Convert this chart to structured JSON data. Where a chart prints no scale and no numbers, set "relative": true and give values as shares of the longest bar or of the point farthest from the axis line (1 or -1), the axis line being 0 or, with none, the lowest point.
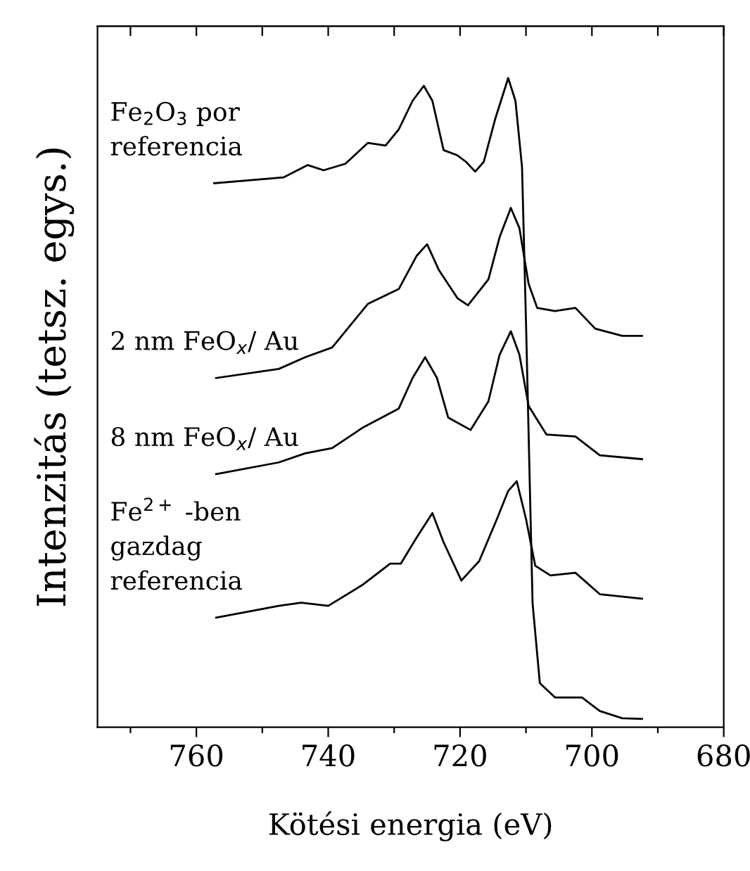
{
  "chart_data": {
    "type": "line",
    "relative": true,
    "xlabel": "Kötési energia (eV)",
    "ylabel": "Intenzitás (tetsz. egys.)",
    "xlim": [
      775,
      680
    ],
    "xticks": [
      {
        "value": 770,
        "label": null
      },
      760,
      {
        "value": 750,
        "label": null
      },
      740,
      {
        "value": 730,
        "label": null
      },
      720,
      {
        "value": 710,
        "label": null
      },
      700,
      {
        "value": 690,
        "label": null
      },
      680
    ],
    "grid": false,
    "marker": "none",
    "line_style": "solid",
    "series": [
      {
        "name": "Fe$_{2}$O$_{3}$ por\nreferencia",
        "color": "#000000",
        "x": [
          757.3,
          746.8,
          743.1,
          740.7,
          737.4,
          734.0,
          731.3,
          729.3,
          727.2,
          725.5,
          724.2,
          722.5,
          720.4,
          719.1,
          717.7,
          716.4,
          714.7,
          712.7,
          711.6,
          710.6,
          710.0,
          709.0,
          707.9,
          705.6,
          701.5,
          698.8,
          695.4,
          692.4
        ],
        "values": [
          0.838,
          0.847,
          0.866,
          0.858,
          0.868,
          0.9,
          0.896,
          0.921,
          0.965,
          0.988,
          0.965,
          0.889,
          0.881,
          0.871,
          0.856,
          0.871,
          0.936,
          1.0,
          0.965,
          0.863,
          0.625,
          0.191,
          0.068,
          0.046,
          0.046,
          0.025,
          0.014,
          0.013
        ]
      },
      {
        "name": "2 nm FeO$_{x}$/ Au",
        "color": "#000000",
        "x": [
          757.0,
          747.5,
          743.5,
          739.4,
          734.0,
          729.3,
          726.6,
          725.0,
          723.2,
          720.4,
          718.8,
          715.7,
          714.0,
          712.3,
          711.0,
          709.6,
          708.3,
          705.6,
          702.5,
          699.5,
          695.4,
          692.4
        ],
        "values": [
          0.538,
          0.552,
          0.57,
          0.585,
          0.652,
          0.675,
          0.726,
          0.744,
          0.704,
          0.661,
          0.65,
          0.69,
          0.755,
          0.8,
          0.769,
          0.683,
          0.646,
          0.641,
          0.646,
          0.614,
          0.603,
          0.603
        ]
      },
      {
        "name": "8 nm FeO$_{x}$/ Au",
        "color": "#000000",
        "x": [
          757.0,
          747.5,
          743.5,
          739.4,
          734.7,
          729.3,
          727.2,
          725.3,
          723.5,
          721.8,
          718.4,
          715.7,
          714.0,
          712.3,
          711.0,
          709.6,
          706.9,
          702.5,
          698.8,
          692.4
        ],
        "values": [
          0.39,
          0.408,
          0.422,
          0.43,
          0.462,
          0.491,
          0.538,
          0.57,
          0.538,
          0.477,
          0.458,
          0.502,
          0.574,
          0.61,
          0.574,
          0.495,
          0.451,
          0.448,
          0.419,
          0.413
        ]
      },
      {
        "name": "Fe$^{2+}$ -ben\ngazdag\nreferencia",
        "color": "#000000",
        "x": [
          757.0,
          747.5,
          744.1,
          740.0,
          734.7,
          730.6,
          729.0,
          726.6,
          724.2,
          722.5,
          719.8,
          717.1,
          714.4,
          712.7,
          711.4,
          710.0,
          708.6,
          706.3,
          702.5,
          698.8,
          692.4
        ],
        "values": [
          0.169,
          0.187,
          0.192,
          0.187,
          0.22,
          0.252,
          0.252,
          0.292,
          0.33,
          0.285,
          0.226,
          0.256,
          0.321,
          0.364,
          0.379,
          0.321,
          0.249,
          0.234,
          0.238,
          0.205,
          0.198
        ]
      }
    ]
  }
}
